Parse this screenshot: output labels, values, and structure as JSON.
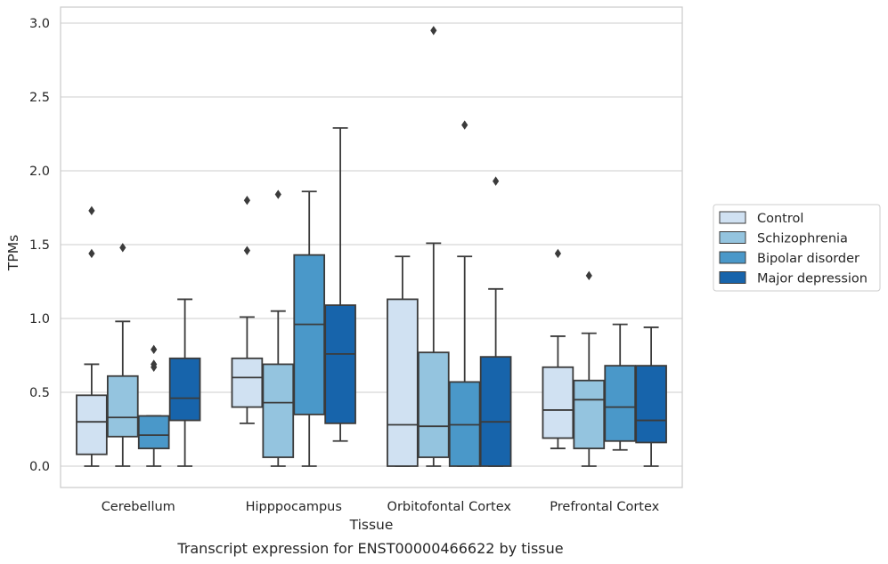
{
  "caption": "Transcript expression for ENST00000466622 by tissue",
  "chart_data": {
    "type": "box",
    "xlabel": "Tissue",
    "ylabel": "TPMs",
    "ylim": [
      -0.14,
      3.1
    ],
    "yticks": [
      "0.0",
      "0.5",
      "1.0",
      "1.5",
      "2.0",
      "2.5",
      "3.0"
    ],
    "grid": true,
    "legend_position": "right",
    "categories": [
      "Cerebellum",
      "Hipppocampus",
      "Orbitofontal Cortex",
      "Prefrontal Cortex"
    ],
    "series": [
      {
        "name": "Control",
        "color": "#d0e1f2",
        "boxes": [
          {
            "whislo": 0.0,
            "q1": 0.08,
            "med": 0.3,
            "q3": 0.48,
            "whishi": 0.69,
            "fliers": [
              1.44,
              1.73
            ]
          },
          {
            "whislo": 0.29,
            "q1": 0.4,
            "med": 0.6,
            "q3": 0.73,
            "whishi": 1.01,
            "fliers": [
              1.46,
              1.8
            ]
          },
          {
            "whislo": 0.0,
            "q1": 0.0,
            "med": 0.28,
            "q3": 1.13,
            "whishi": 1.42,
            "fliers": []
          },
          {
            "whislo": 0.12,
            "q1": 0.19,
            "med": 0.38,
            "q3": 0.67,
            "whishi": 0.88,
            "fliers": [
              1.44
            ]
          }
        ]
      },
      {
        "name": "Schizophrenia",
        "color": "#94c4df",
        "boxes": [
          {
            "whislo": 0.0,
            "q1": 0.2,
            "med": 0.33,
            "q3": 0.61,
            "whishi": 0.98,
            "fliers": [
              1.48
            ]
          },
          {
            "whislo": 0.0,
            "q1": 0.06,
            "med": 0.43,
            "q3": 0.69,
            "whishi": 1.05,
            "fliers": [
              1.84
            ]
          },
          {
            "whislo": 0.0,
            "q1": 0.06,
            "med": 0.27,
            "q3": 0.77,
            "whishi": 1.51,
            "fliers": [
              2.95
            ]
          },
          {
            "whislo": 0.0,
            "q1": 0.12,
            "med": 0.45,
            "q3": 0.58,
            "whishi": 0.9,
            "fliers": [
              1.29
            ]
          }
        ]
      },
      {
        "name": "Bipolar disorder",
        "color": "#4a98c9",
        "boxes": [
          {
            "whislo": 0.0,
            "q1": 0.12,
            "med": 0.21,
            "q3": 0.34,
            "whishi": 0.34,
            "fliers": [
              0.67,
              0.69,
              0.79
            ]
          },
          {
            "whislo": 0.0,
            "q1": 0.35,
            "med": 0.96,
            "q3": 1.43,
            "whishi": 1.86,
            "fliers": []
          },
          {
            "whislo": 0.0,
            "q1": 0.0,
            "med": 0.28,
            "q3": 0.57,
            "whishi": 1.42,
            "fliers": [
              2.31
            ]
          },
          {
            "whislo": 0.11,
            "q1": 0.17,
            "med": 0.4,
            "q3": 0.68,
            "whishi": 0.96,
            "fliers": []
          }
        ]
      },
      {
        "name": "Major depression",
        "color": "#1764ab",
        "boxes": [
          {
            "whislo": 0.0,
            "q1": 0.31,
            "med": 0.46,
            "q3": 0.73,
            "whishi": 1.13,
            "fliers": []
          },
          {
            "whislo": 0.17,
            "q1": 0.29,
            "med": 0.76,
            "q3": 1.09,
            "whishi": 2.29,
            "fliers": []
          },
          {
            "whislo": 0.0,
            "q1": 0.0,
            "med": 0.3,
            "q3": 0.74,
            "whishi": 1.2,
            "fliers": [
              1.93
            ]
          },
          {
            "whislo": 0.0,
            "q1": 0.16,
            "med": 0.31,
            "q3": 0.68,
            "whishi": 0.94,
            "fliers": []
          }
        ]
      }
    ]
  }
}
